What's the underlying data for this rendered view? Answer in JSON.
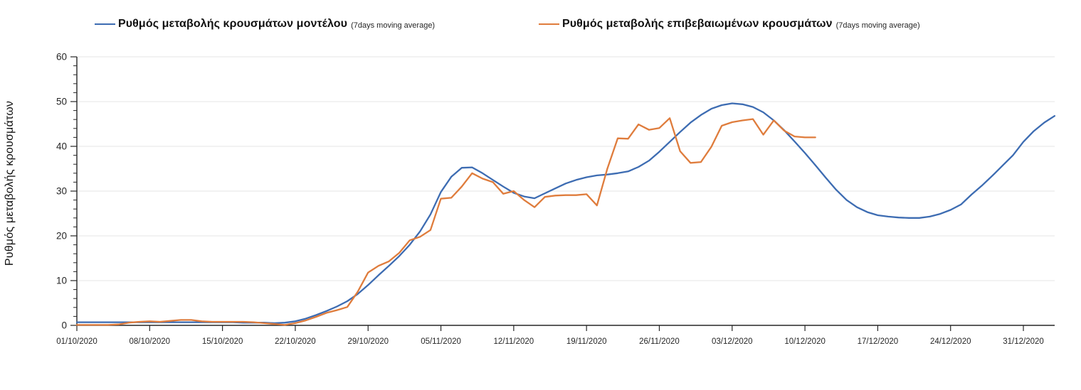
{
  "page": {
    "background": "#ffffff"
  },
  "legend": [
    {
      "label": "Ρυθμός μεταβολής κρουσμάτων μοντέλου",
      "suffix": "(7days moving average)",
      "color": "#3d6cb2"
    },
    {
      "label": "Ρυθμός μεταβολής επιβεβαιωμένων κρουσμάτων",
      "suffix": "(7days moving average)",
      "color": "#df7c3c"
    }
  ],
  "chart_data": {
    "type": "line",
    "title": "",
    "xlabel": "",
    "ylabel": "Ρυθμός μεταβολής κρουσμάτων",
    "ylim": [
      0,
      60
    ],
    "y_major_ticks": [
      0,
      10,
      20,
      30,
      40,
      50,
      60
    ],
    "y_minor_step": 2,
    "grid": "horizontal, light gray, at every 10 units",
    "legend_position": "top",
    "x_tick_labels": [
      "01/10/2020",
      "08/10/2020",
      "15/10/2020",
      "22/10/2020",
      "29/10/2020",
      "05/11/2020",
      "12/11/2020",
      "19/11/2020",
      "26/11/2020",
      "03/12/2020",
      "10/12/2020",
      "17/12/2020",
      "24/12/2020",
      "31/12/2020"
    ],
    "x_unit": "daily points, ticks weekly",
    "series": [
      {
        "name": "Ρυθμός μεταβολής κρουσμάτων μοντέλου (7days moving average)",
        "color": "#3d6cb2",
        "start_date": "01/10/2020",
        "end_date": "03/01/2021",
        "values": [
          0.7,
          0.7,
          0.7,
          0.7,
          0.7,
          0.7,
          0.7,
          0.7,
          0.7,
          0.7,
          0.7,
          0.7,
          0.7,
          0.7,
          0.7,
          0.7,
          0.6,
          0.6,
          0.6,
          0.5,
          0.6,
          0.9,
          1.5,
          2.3,
          3.2,
          4.2,
          5.4,
          7.0,
          9.0,
          11.2,
          13.3,
          15.5,
          18.0,
          21.0,
          24.8,
          29.8,
          33.2,
          35.2,
          35.3,
          34.0,
          32.5,
          31.0,
          29.6,
          28.8,
          28.4,
          29.5,
          30.6,
          31.7,
          32.5,
          33.1,
          33.5,
          33.7,
          34.0,
          34.4,
          35.4,
          36.8,
          38.8,
          41.0,
          43.2,
          45.3,
          47.0,
          48.4,
          49.2,
          49.6,
          49.4,
          48.8,
          47.6,
          45.8,
          43.6,
          41.1,
          38.5,
          35.8,
          33.0,
          30.3,
          28.0,
          26.4,
          25.3,
          24.6,
          24.3,
          24.1,
          24.0,
          24.0,
          24.3,
          24.9,
          25.8,
          27.0,
          29.2,
          31.2,
          33.4,
          35.7,
          38.0,
          41.0,
          43.4,
          45.3,
          46.8
        ]
      },
      {
        "name": "Ρυθμός μεταβολής επιβεβαιωμένων κρουσμάτων (7days moving average)",
        "color": "#df7c3c",
        "start_date": "01/10/2020",
        "end_date": "11/12/2020",
        "values": [
          0.1,
          0.1,
          0.1,
          0.1,
          0.2,
          0.6,
          0.8,
          0.9,
          0.8,
          1.0,
          1.2,
          1.2,
          0.9,
          0.8,
          0.8,
          0.8,
          0.8,
          0.7,
          0.5,
          0.3,
          0.1,
          0.5,
          1.1,
          1.9,
          2.8,
          3.4,
          4.1,
          7.5,
          11.8,
          13.3,
          14.3,
          16.2,
          19.0,
          19.8,
          21.3,
          28.3,
          28.5,
          31.0,
          34.0,
          32.8,
          32.0,
          29.4,
          30.0,
          28.0,
          26.4,
          28.7,
          29.0,
          29.1,
          29.1,
          29.3,
          26.8,
          35.0,
          41.8,
          41.7,
          44.9,
          43.7,
          44.1,
          46.3,
          38.9,
          36.3,
          36.5,
          39.9,
          44.6,
          45.4,
          45.8,
          46.1,
          42.6,
          45.8,
          43.5,
          42.2,
          42.0,
          42.0
        ]
      }
    ]
  },
  "style": {
    "grid_color": "#e6e6e6",
    "axis_color": "#262626",
    "tick_label_color": "#262626"
  }
}
